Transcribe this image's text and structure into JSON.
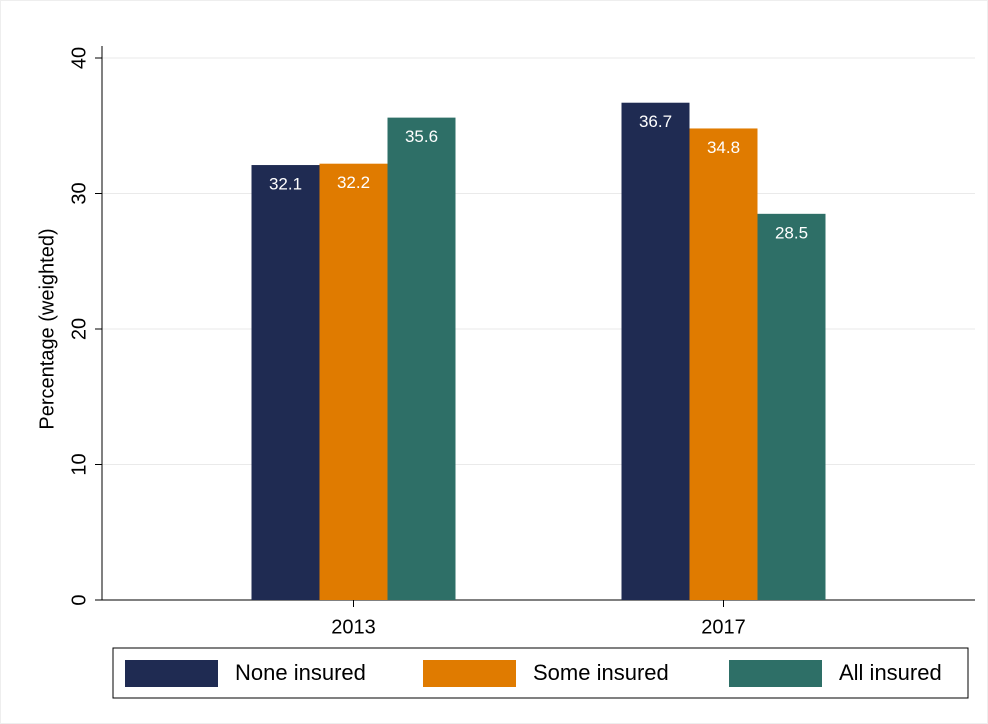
{
  "chart_data": {
    "type": "bar",
    "y_label": "Percentage (weighted)",
    "categories": [
      "2013",
      "2017"
    ],
    "series": [
      {
        "name": "None insured",
        "color": "#1f2b52",
        "values": [
          32.1,
          36.7
        ]
      },
      {
        "name": "Some insured",
        "color": "#e07b00",
        "values": [
          32.2,
          34.8
        ]
      },
      {
        "name": "All insured",
        "color": "#2e6f67",
        "values": [
          35.6,
          28.5
        ]
      }
    ],
    "ylim": [
      0,
      40
    ],
    "yticks": [
      0,
      10,
      20,
      30,
      40
    ],
    "grid": true
  }
}
